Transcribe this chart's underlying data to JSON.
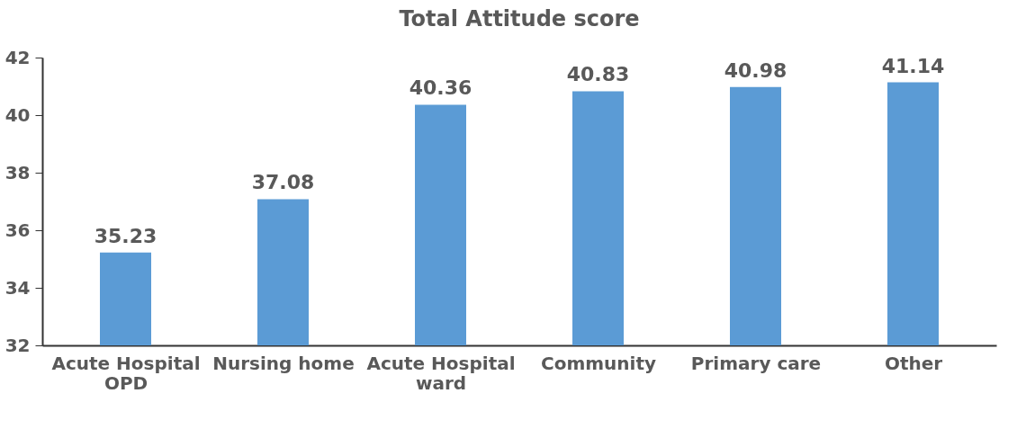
{
  "chart_data": {
    "type": "bar",
    "title": "Total  Attitude score",
    "categories": [
      "Acute Hospital OPD",
      "Nursing home",
      "Acute Hospital ward",
      "Community",
      "Primary care",
      "Other"
    ],
    "values": [
      35.23,
      37.08,
      40.36,
      40.83,
      40.98,
      41.14
    ],
    "color": "#5b9bd5",
    "ylim": [
      32,
      42
    ],
    "yticks": [
      32,
      34,
      36,
      38,
      40,
      42
    ],
    "grid": false,
    "data_labels": true
  }
}
